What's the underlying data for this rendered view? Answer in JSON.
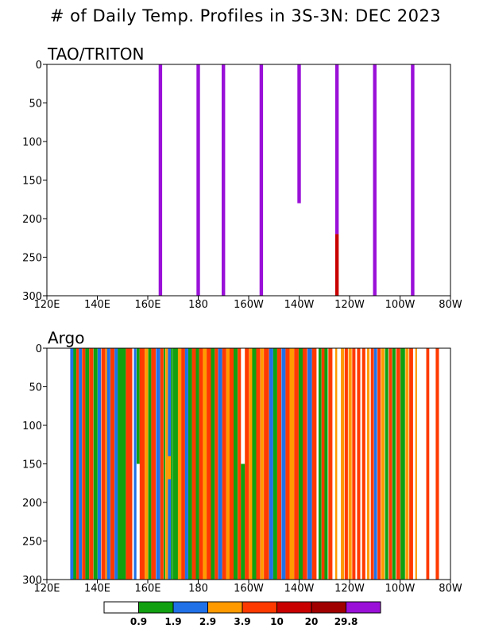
{
  "title": "# of Daily Temp. Profiles in 3S-3N: DEC 2023",
  "colors": {
    "white": "#ffffff",
    "green": "#10a010",
    "blue": "#2070e8",
    "orange": "#ff9a00",
    "redorange": "#ff3a00",
    "red": "#c80000",
    "darkred": "#a00000",
    "purple": "#9a10d8"
  },
  "chart_data": [
    {
      "type": "heatmap",
      "title": "TAO/TRITON",
      "x_ticks": [
        "120E",
        "140E",
        "160E",
        "180",
        "160W",
        "140W",
        "120W",
        "100W",
        "80W"
      ],
      "x_tick_lon": [
        120,
        140,
        160,
        180,
        200,
        220,
        240,
        260,
        280
      ],
      "y_ticks": [
        "0",
        "50",
        "100",
        "150",
        "200",
        "250",
        "300"
      ],
      "y_tick_values": [
        0,
        50,
        100,
        150,
        200,
        250,
        300
      ],
      "xlim": [
        120,
        280
      ],
      "ylim": [
        0,
        300
      ],
      "columns": [
        {
          "lon": 165,
          "top": 0,
          "bottom": 300,
          "color": "#9a10d8"
        },
        {
          "lon": 180,
          "top": 0,
          "bottom": 300,
          "color": "#9a10d8"
        },
        {
          "lon": 190,
          "top": 0,
          "bottom": 300,
          "color": "#9a10d8"
        },
        {
          "lon": 205,
          "top": 0,
          "bottom": 300,
          "color": "#9a10d8"
        },
        {
          "lon": 220,
          "top": 0,
          "bottom": 180,
          "color": "#9a10d8"
        },
        {
          "lon": 235,
          "top": 0,
          "bottom": 220,
          "color": "#9a10d8"
        },
        {
          "lon": 235,
          "top": 220,
          "bottom": 300,
          "color": "#c80000"
        },
        {
          "lon": 250,
          "top": 0,
          "bottom": 300,
          "color": "#9a10d8"
        },
        {
          "lon": 265,
          "top": 0,
          "bottom": 300,
          "color": "#9a10d8"
        }
      ]
    },
    {
      "type": "heatmap",
      "title": "Argo",
      "x_ticks": [
        "120E",
        "140E",
        "160E",
        "180",
        "160W",
        "140W",
        "120W",
        "100W",
        "80W"
      ],
      "x_tick_lon": [
        120,
        140,
        160,
        180,
        200,
        220,
        240,
        260,
        280
      ],
      "y_ticks": [
        "0",
        "50",
        "100",
        "150",
        "200",
        "250",
        "300"
      ],
      "y_tick_values": [
        0,
        50,
        100,
        150,
        200,
        250,
        300
      ],
      "xlim": [
        120,
        280
      ],
      "ylim": [
        0,
        300
      ],
      "columns": [
        {
          "lon": 129.9,
          "width": 1.3,
          "color": "#2070e8"
        },
        {
          "lon": 131.1,
          "width": 1.2,
          "color": "#10a010"
        },
        {
          "lon": 132.2,
          "width": 1.0,
          "color": "#ff3a00"
        },
        {
          "lon": 133.3,
          "width": 1.2,
          "color": "#2070e8"
        },
        {
          "lon": 134.6,
          "width": 1.3,
          "color": "#ff3a00"
        },
        {
          "lon": 136.0,
          "width": 1.5,
          "color": "#10a010"
        },
        {
          "lon": 137.6,
          "width": 1.6,
          "color": "#ff3a00"
        },
        {
          "lon": 139.3,
          "width": 1.6,
          "color": "#10a010"
        },
        {
          "lon": 140.8,
          "width": 1.3,
          "color": "#2070e8"
        },
        {
          "lon": 142.4,
          "width": 1.6,
          "color": "#ff3a00"
        },
        {
          "lon": 143.6,
          "width": 0.7,
          "color": "#ff9a00"
        },
        {
          "lon": 144.5,
          "width": 1.3,
          "color": "#2070e8"
        },
        {
          "lon": 146.0,
          "width": 1.6,
          "color": "#ff3a00"
        },
        {
          "lon": 147.5,
          "width": 1.3,
          "color": "#2070e8"
        },
        {
          "lon": 149.7,
          "width": 3.2,
          "color": "#10a010"
        },
        {
          "lon": 152.6,
          "width": 2.6,
          "color": "#ff3a00"
        },
        {
          "lon": 154.2,
          "width": 0.7,
          "color": "#ffffff"
        },
        {
          "lon": 155.0,
          "width": 1.0,
          "color": "#2070e8"
        },
        {
          "lon": 156.2,
          "width": 1.2,
          "color": "#10a010",
          "bottom": 150
        },
        {
          "lon": 157.8,
          "width": 2.0,
          "color": "#ff3a00"
        },
        {
          "lon": 159.5,
          "width": 1.3,
          "color": "#ff9a00"
        },
        {
          "lon": 160.8,
          "width": 1.2,
          "color": "#10a010"
        },
        {
          "lon": 162.3,
          "width": 1.8,
          "color": "#ff3a00"
        },
        {
          "lon": 164.1,
          "width": 1.6,
          "color": "#2070e8"
        },
        {
          "lon": 165.6,
          "width": 1.3,
          "color": "#ff3a00"
        },
        {
          "lon": 166.6,
          "width": 0.6,
          "color": "#10a010"
        },
        {
          "lon": 167.5,
          "width": 1.0,
          "color": "#ff9a00"
        },
        {
          "lon": 168.6,
          "width": 1.2,
          "color": "#2070e8",
          "top": 140,
          "bottom": 170,
          "top_color": "#ff9a00",
          "bottom_color": "#2070e8"
        },
        {
          "lon": 169.5,
          "width": 0.6,
          "color": "#10a010"
        },
        {
          "lon": 170.9,
          "width": 2.1,
          "color": "#10a010"
        },
        {
          "lon": 172.6,
          "width": 1.3,
          "color": "#ff9a00"
        },
        {
          "lon": 174.0,
          "width": 1.5,
          "color": "#ff3a00"
        },
        {
          "lon": 175.4,
          "width": 1.3,
          "color": "#2070e8"
        },
        {
          "lon": 176.8,
          "width": 1.5,
          "color": "#10a010"
        },
        {
          "lon": 178.3,
          "width": 1.5,
          "color": "#ff3a00"
        },
        {
          "lon": 179.7,
          "width": 1.3,
          "color": "#10a010"
        },
        {
          "lon": 181.1,
          "width": 1.5,
          "color": "#ff3a00"
        },
        {
          "lon": 182.6,
          "width": 1.5,
          "color": "#ff9a00"
        },
        {
          "lon": 184.2,
          "width": 1.7,
          "color": "#ff3a00"
        },
        {
          "lon": 185.8,
          "width": 1.5,
          "color": "#10a010"
        },
        {
          "lon": 187.2,
          "width": 1.3,
          "color": "#ff3a00"
        },
        {
          "lon": 188.7,
          "width": 1.6,
          "color": "#2070e8"
        },
        {
          "lon": 190.3,
          "width": 1.6,
          "color": "#ff3a00"
        },
        {
          "lon": 191.8,
          "width": 1.3,
          "color": "#ff9a00"
        },
        {
          "lon": 193.2,
          "width": 1.6,
          "color": "#ff3a00"
        },
        {
          "lon": 194.8,
          "width": 1.6,
          "color": "#10a010"
        },
        {
          "lon": 196.3,
          "width": 1.3,
          "color": "#ff3a00"
        },
        {
          "lon": 197.7,
          "width": 1.6,
          "color": "#10a010",
          "top": 150
        },
        {
          "lon": 199.3,
          "width": 1.6,
          "color": "#ff3a00"
        },
        {
          "lon": 200.8,
          "width": 1.3,
          "color": "#ff9a00"
        },
        {
          "lon": 202.2,
          "width": 1.6,
          "color": "#10a010"
        },
        {
          "lon": 203.8,
          "width": 1.6,
          "color": "#ff3a00"
        },
        {
          "lon": 205.3,
          "width": 1.3,
          "color": "#ff9a00"
        },
        {
          "lon": 207.0,
          "width": 2.0,
          "color": "#ff3a00"
        },
        {
          "lon": 208.9,
          "width": 1.6,
          "color": "#2070e8"
        },
        {
          "lon": 210.5,
          "width": 1.6,
          "color": "#10a010"
        },
        {
          "lon": 212.1,
          "width": 1.6,
          "color": "#ff3a00"
        },
        {
          "lon": 213.8,
          "width": 1.6,
          "color": "#2070e8"
        },
        {
          "lon": 215.4,
          "width": 1.6,
          "color": "#ff3a00"
        },
        {
          "lon": 217.1,
          "width": 1.8,
          "color": "#ff9a00"
        },
        {
          "lon": 218.9,
          "width": 1.8,
          "color": "#ff3a00"
        },
        {
          "lon": 220.6,
          "width": 1.6,
          "color": "#10a010"
        },
        {
          "lon": 222.3,
          "width": 1.8,
          "color": "#ff3a00"
        },
        {
          "lon": 224.2,
          "width": 1.8,
          "color": "#2070e8"
        },
        {
          "lon": 226.0,
          "width": 1.8,
          "color": "#ff3a00"
        },
        {
          "lon": 227.4,
          "width": 0.6,
          "color": "#ffffff"
        },
        {
          "lon": 228.3,
          "width": 1.2,
          "color": "#10a010"
        },
        {
          "lon": 229.5,
          "width": 1.2,
          "color": "#ff3a00"
        },
        {
          "lon": 230.7,
          "width": 1.3,
          "color": "#10a010"
        },
        {
          "lon": 232.4,
          "width": 1.6,
          "color": "#ff3a00"
        },
        {
          "lon": 234.7,
          "width": 0.8,
          "color": "#ff9a00"
        },
        {
          "lon": 237.2,
          "width": 1.3,
          "color": "#ff9a00"
        },
        {
          "lon": 238.7,
          "width": 1.3,
          "color": "#ff3a00"
        },
        {
          "lon": 240.2,
          "width": 1.3,
          "color": "#ff9a00"
        },
        {
          "lon": 241.7,
          "width": 1.3,
          "color": "#ff3a00"
        },
        {
          "lon": 243.6,
          "width": 1.3,
          "color": "#ff3a00"
        },
        {
          "lon": 245.6,
          "width": 1.3,
          "color": "#ff3a00"
        },
        {
          "lon": 247.4,
          "width": 1.0,
          "color": "#ff9a00"
        },
        {
          "lon": 249.0,
          "width": 1.2,
          "color": "#ff3a00"
        },
        {
          "lon": 250.3,
          "width": 1.2,
          "color": "#2070e8"
        },
        {
          "lon": 251.7,
          "width": 1.3,
          "color": "#ff3a00"
        },
        {
          "lon": 253.2,
          "width": 1.3,
          "color": "#ff9a00"
        },
        {
          "lon": 254.7,
          "width": 1.3,
          "color": "#10a010"
        },
        {
          "lon": 256.2,
          "width": 1.3,
          "color": "#ff3a00"
        },
        {
          "lon": 257.6,
          "width": 1.3,
          "color": "#10a010"
        },
        {
          "lon": 259.3,
          "width": 1.6,
          "color": "#ff3a00"
        },
        {
          "lon": 261.1,
          "width": 1.8,
          "color": "#10a010"
        },
        {
          "lon": 262.8,
          "width": 1.3,
          "color": "#ff9a00"
        },
        {
          "lon": 264.4,
          "width": 1.5,
          "color": "#ff3a00"
        },
        {
          "lon": 266.4,
          "width": 0.7,
          "color": "#ff9a00"
        },
        {
          "lon": 271.0,
          "width": 1.2,
          "color": "#ff3a00"
        },
        {
          "lon": 274.8,
          "width": 1.3,
          "color": "#ff3a00"
        }
      ]
    }
  ],
  "colorbar": {
    "colors": [
      "#ffffff",
      "#10a010",
      "#2070e8",
      "#ff9a00",
      "#ff3a00",
      "#c80000",
      "#a00000",
      "#9a10d8"
    ],
    "labels": [
      "0.9",
      "1.9",
      "2.9",
      "3.9",
      "10",
      "20",
      "29.8"
    ]
  }
}
